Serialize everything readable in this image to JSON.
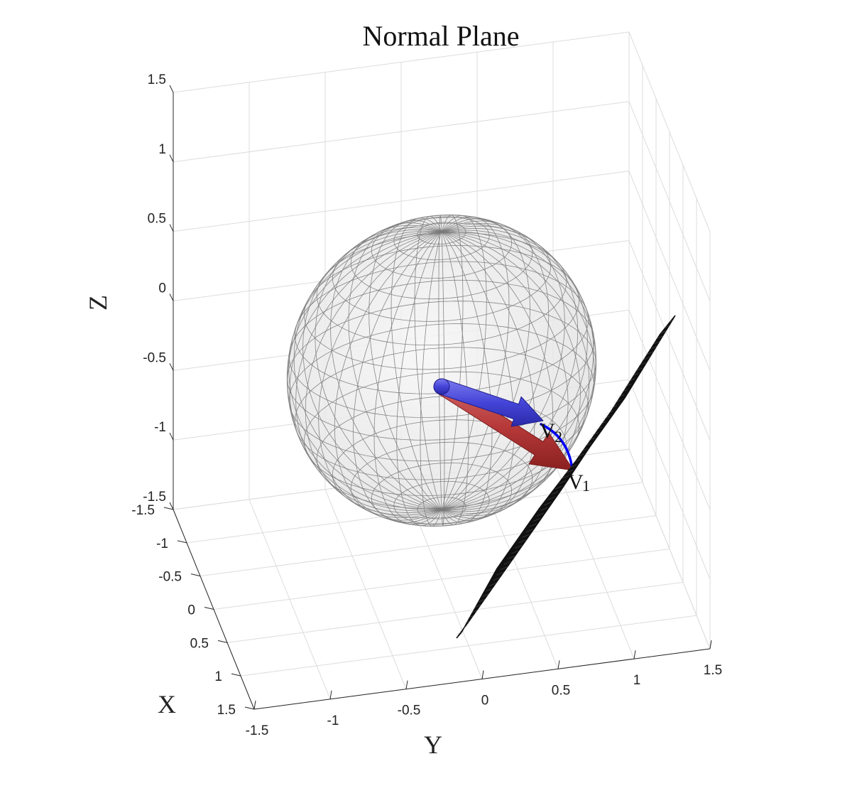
{
  "chart_data": {
    "type": "3d-surface",
    "title": "Normal Plane",
    "xlabel": "X",
    "ylabel": "Y",
    "zlabel": "Z",
    "xlim": [
      -1.5,
      1.5
    ],
    "ylim": [
      -1.5,
      1.5
    ],
    "zlim": [
      -1.5,
      1.5
    ],
    "x_ticks": [
      "-1.5",
      "-1",
      "-0.5",
      "0",
      "0.5",
      "1",
      "1.5"
    ],
    "y_ticks": [
      "-1.5",
      "-1",
      "-0.5",
      "0",
      "0.5",
      "1",
      "1.5"
    ],
    "z_ticks": [
      "-1.5",
      "-1",
      "-0.5",
      "0",
      "0.5",
      "1",
      "1.5"
    ],
    "grid": true,
    "sphere": {
      "center": [
        0,
        0,
        0
      ],
      "radius": 1,
      "style": "transparent gray wireframe mesh"
    },
    "vectors": [
      {
        "label": "v1",
        "label_text": "V",
        "label_sub": "1",
        "color": "#b22222",
        "style": "red arrow from origin to sphere surface"
      },
      {
        "label": "v2",
        "label_text": "V",
        "label_sub": "2",
        "color": "#2222cc",
        "style": "blue arrow from origin"
      }
    ],
    "arc": {
      "color": "#0000ff",
      "style": "great-circle arc on sphere between v1 and v2"
    },
    "plane": {
      "color": "#000000",
      "style": "black mesh plane through the tip of v1"
    }
  },
  "colors": {
    "grid": "#dcdcdc",
    "axis": "#262626",
    "sphere_mesh": "#7a7a7a",
    "sphere_fill": "#eeeeee",
    "v1": "#b22222",
    "v2": "#2a2ad0",
    "arc": "#0000ff",
    "plane": "#111111"
  }
}
